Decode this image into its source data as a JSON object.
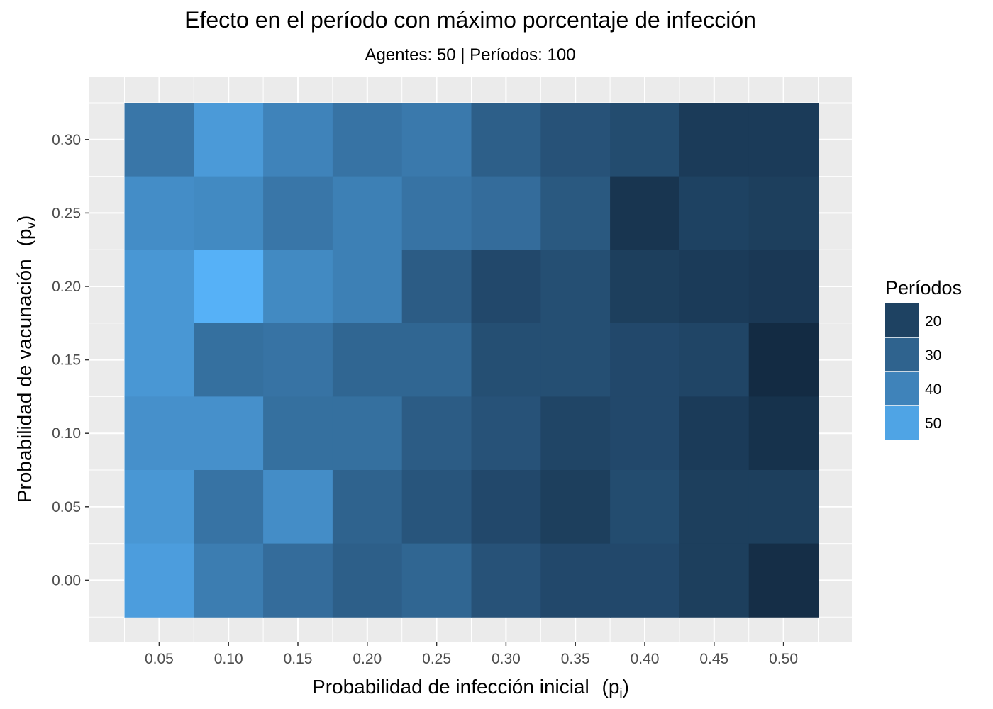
{
  "chart_data": {
    "type": "heatmap",
    "title": "Efecto en el período con máximo porcentaje de infección",
    "subtitle": "Agentes: 50 | Períodos: 100",
    "xlabel": "Probabilidad de infección inicial",
    "xlabel_symbol": "(p",
    "xlabel_subscript": "i",
    "xlabel_close": ")",
    "ylabel": "Probabilidad de vacunación",
    "ylabel_symbol": "(p",
    "ylabel_subscript": "v",
    "ylabel_close": ")",
    "x": [
      0.05,
      0.1,
      0.15,
      0.2,
      0.25,
      0.3,
      0.35,
      0.4,
      0.45,
      0.5
    ],
    "x_tick_labels": [
      "0.05",
      "0.10",
      "0.15",
      "0.20",
      "0.25",
      "0.30",
      "0.35",
      "0.40",
      "0.45",
      "0.50"
    ],
    "y": [
      0.3,
      0.25,
      0.2,
      0.15,
      0.1,
      0.05,
      0.0
    ],
    "y_tick_labels": [
      "0.30",
      "0.25",
      "0.20",
      "0.15",
      "0.10",
      "0.05",
      "0.00"
    ],
    "values": [
      [
        36,
        47,
        40,
        35,
        37,
        29,
        25,
        23,
        18,
        18
      ],
      [
        43,
        42,
        36,
        39,
        35,
        33,
        27,
        16,
        20,
        19
      ],
      [
        46,
        54,
        42,
        39,
        28,
        22,
        24,
        19,
        18,
        17
      ],
      [
        46,
        34,
        35,
        31,
        31,
        24,
        24,
        22,
        21,
        13
      ],
      [
        44,
        44,
        34,
        34,
        28,
        25,
        21,
        22,
        18,
        15
      ],
      [
        46,
        35,
        43,
        30,
        26,
        22,
        19,
        23,
        19,
        19
      ],
      [
        48,
        38,
        33,
        29,
        31,
        25,
        22,
        22,
        19,
        14
      ]
    ],
    "legend": {
      "title": "Períodos",
      "labels": [
        "20",
        "30",
        "40",
        "50"
      ],
      "values": [
        20,
        30,
        40,
        50
      ],
      "position": "right"
    },
    "color_scale": {
      "low": "#132B43",
      "high": "#56B1F7",
      "min": 13,
      "max": 54
    },
    "panel_background": "#EBEBEB",
    "grid": true
  }
}
